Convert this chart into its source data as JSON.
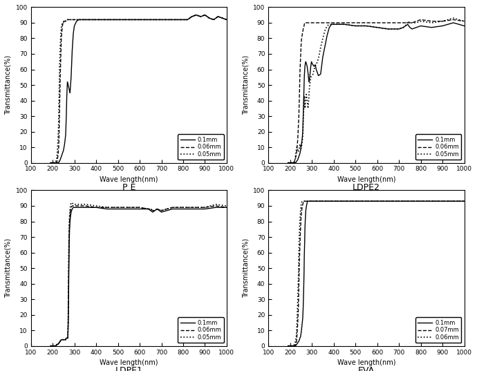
{
  "subplot_titles": [
    "P E",
    "LDPE2",
    "LDPE1",
    "EVA"
  ],
  "xlabel": "Wave length(nm)",
  "ylabel": "Transmittance(%)",
  "xlim": [
    100,
    1000
  ],
  "ylim": [
    0,
    100
  ],
  "xticks": [
    100,
    200,
    300,
    400,
    500,
    600,
    700,
    800,
    900,
    1000
  ],
  "yticks": [
    0,
    10,
    20,
    30,
    40,
    50,
    60,
    70,
    80,
    90,
    100
  ],
  "background_color": "#ffffff",
  "PE": {
    "legend": [
      "0.1mm",
      "0.06mm",
      "0.05mm"
    ],
    "thick_01": {
      "x": [
        190,
        200,
        205,
        210,
        215,
        217,
        220,
        222,
        225,
        228,
        230,
        232,
        235,
        240,
        245,
        250,
        255,
        260,
        263,
        265,
        268,
        270,
        273,
        275,
        278,
        280,
        285,
        290,
        295,
        300,
        310,
        320,
        330,
        340,
        350,
        400,
        500,
        600,
        700,
        800,
        820,
        840,
        860,
        880,
        900,
        920,
        940,
        960,
        980,
        1000
      ],
      "y": [
        0,
        0,
        0,
        0,
        0,
        0,
        0,
        0,
        0,
        0,
        1,
        1,
        2,
        4,
        6,
        8,
        12,
        18,
        30,
        42,
        52,
        51,
        49,
        48,
        46,
        45,
        55,
        72,
        83,
        88,
        91,
        92,
        92,
        92,
        92,
        92,
        92,
        92,
        92,
        92,
        92,
        94,
        95,
        94,
        95,
        93,
        92,
        94,
        93,
        92
      ]
    },
    "thick_006": {
      "x": [
        190,
        200,
        205,
        210,
        215,
        218,
        220,
        222,
        225,
        228,
        230,
        232,
        235,
        238,
        240,
        243,
        245,
        248,
        250,
        252,
        255,
        258,
        260,
        263,
        265,
        268,
        270,
        275,
        280,
        285,
        290,
        295,
        300,
        310,
        320,
        330,
        340,
        350,
        400,
        500,
        600,
        700,
        800,
        820,
        840,
        860,
        880,
        900,
        920,
        940,
        960,
        980,
        1000
      ],
      "y": [
        0,
        0,
        0,
        0,
        0,
        0,
        1,
        2,
        5,
        10,
        20,
        35,
        55,
        70,
        80,
        85,
        88,
        90,
        91,
        91,
        91,
        91,
        91,
        92,
        92,
        92,
        92,
        92,
        92,
        92,
        92,
        92,
        92,
        92,
        92,
        92,
        92,
        92,
        92,
        92,
        92,
        92,
        92,
        92,
        94,
        95,
        94,
        95,
        93,
        92,
        94,
        93,
        92
      ]
    },
    "thick_005": {
      "x": [
        190,
        200,
        205,
        210,
        213,
        215,
        218,
        220,
        222,
        225,
        228,
        230,
        232,
        235,
        238,
        240,
        243,
        245,
        248,
        250,
        252,
        255,
        258,
        260,
        263,
        265,
        268,
        270,
        275,
        280,
        285,
        290,
        295,
        300,
        310,
        320,
        330,
        340,
        350,
        400,
        500,
        600,
        700,
        800,
        820,
        840,
        860,
        880,
        900,
        920,
        940,
        960,
        980,
        1000
      ],
      "y": [
        0,
        0,
        0,
        0,
        0,
        1,
        2,
        4,
        8,
        15,
        28,
        45,
        62,
        75,
        83,
        87,
        89,
        90,
        90,
        90,
        91,
        91,
        91,
        91,
        92,
        92,
        92,
        92,
        92,
        92,
        92,
        92,
        92,
        92,
        92,
        92,
        92,
        92,
        92,
        92,
        92,
        92,
        92,
        92,
        92,
        94,
        95,
        94,
        95,
        93,
        92,
        94,
        93,
        92
      ]
    }
  },
  "LDPE2": {
    "legend": [
      "0.1mm",
      "0.06mm",
      "0.05mm"
    ],
    "thick_01": {
      "x": [
        190,
        200,
        205,
        210,
        215,
        220,
        225,
        230,
        235,
        240,
        245,
        248,
        250,
        252,
        255,
        258,
        260,
        262,
        264,
        265,
        267,
        268,
        270,
        272,
        274,
        276,
        278,
        280,
        282,
        284,
        285,
        287,
        290,
        292,
        295,
        298,
        300,
        305,
        310,
        315,
        320,
        325,
        330,
        340,
        350,
        360,
        370,
        380,
        390,
        400,
        450,
        500,
        550,
        600,
        650,
        700,
        720,
        730,
        740,
        750,
        760,
        780,
        800,
        850,
        900,
        950,
        1000
      ],
      "y": [
        0,
        0,
        0,
        0,
        0,
        0,
        0,
        1,
        2,
        4,
        6,
        8,
        10,
        12,
        15,
        20,
        30,
        40,
        50,
        55,
        60,
        62,
        64,
        65,
        64,
        63,
        62,
        60,
        58,
        55,
        54,
        52,
        55,
        58,
        62,
        65,
        64,
        63,
        62,
        63,
        60,
        58,
        56,
        57,
        68,
        75,
        82,
        87,
        89,
        89,
        89,
        88,
        88,
        87,
        86,
        86,
        87,
        88,
        89,
        87,
        86,
        87,
        88,
        87,
        88,
        90,
        88
      ]
    },
    "thick_006": {
      "x": [
        190,
        200,
        205,
        210,
        215,
        220,
        225,
        230,
        235,
        240,
        243,
        245,
        248,
        250,
        252,
        255,
        258,
        260,
        262,
        264,
        265,
        267,
        270,
        272,
        275,
        278,
        280,
        282,
        285,
        287,
        290,
        295,
        300,
        305,
        310,
        315,
        320,
        330,
        340,
        350,
        360,
        370,
        380,
        390,
        400,
        450,
        500,
        550,
        600,
        650,
        700,
        720,
        730,
        740,
        750,
        760,
        780,
        800,
        850,
        900,
        950,
        1000
      ],
      "y": [
        0,
        0,
        0,
        0,
        0,
        1,
        3,
        7,
        15,
        30,
        45,
        58,
        68,
        75,
        79,
        82,
        84,
        86,
        87,
        88,
        89,
        90,
        90,
        90,
        90,
        90,
        90,
        90,
        90,
        90,
        90,
        90,
        90,
        90,
        90,
        90,
        90,
        90,
        90,
        90,
        90,
        90,
        90,
        90,
        90,
        90,
        90,
        90,
        90,
        90,
        90,
        90,
        90,
        90,
        90,
        90,
        91,
        92,
        91,
        91,
        92,
        91
      ]
    },
    "thick_005": {
      "x": [
        190,
        200,
        205,
        210,
        215,
        218,
        220,
        222,
        225,
        228,
        230,
        232,
        235,
        238,
        240,
        243,
        245,
        248,
        250,
        252,
        255,
        258,
        260,
        262,
        264,
        265,
        267,
        268,
        270,
        272,
        274,
        276,
        278,
        280,
        282,
        285,
        287,
        290,
        295,
        300,
        305,
        310,
        315,
        320,
        330,
        340,
        350,
        360,
        370,
        380,
        390,
        400,
        450,
        500,
        550,
        600,
        650,
        700,
        720,
        730,
        740,
        750,
        760,
        780,
        800,
        850,
        900,
        950,
        1000
      ],
      "y": [
        0,
        0,
        0,
        0,
        0,
        0,
        1,
        2,
        5,
        8,
        10,
        10,
        8,
        7,
        8,
        10,
        12,
        10,
        9,
        10,
        13,
        17,
        25,
        33,
        40,
        43,
        38,
        35,
        38,
        42,
        44,
        42,
        40,
        38,
        35,
        40,
        45,
        50,
        55,
        56,
        57,
        60,
        62,
        63,
        67,
        74,
        80,
        85,
        88,
        89,
        89,
        89,
        89,
        88,
        88,
        87,
        86,
        86,
        87,
        88,
        91,
        90,
        90,
        90,
        91,
        90,
        91,
        93,
        91
      ]
    }
  },
  "LDPE1": {
    "legend": [
      "0.1mm",
      "0.06mm",
      "0.05mm"
    ],
    "thick_01": {
      "x": [
        190,
        200,
        205,
        210,
        215,
        220,
        225,
        230,
        235,
        240,
        245,
        248,
        250,
        252,
        255,
        258,
        260,
        262,
        264,
        265,
        267,
        268,
        270,
        272,
        274,
        276,
        278,
        280,
        282,
        285,
        290,
        295,
        300,
        310,
        320,
        330,
        340,
        350,
        400,
        450,
        500,
        550,
        600,
        640,
        650,
        660,
        670,
        680,
        700,
        750,
        800,
        850,
        900,
        950,
        1000
      ],
      "y": [
        0,
        0,
        0,
        0,
        0,
        1,
        1,
        2,
        3,
        4,
        4,
        4,
        4,
        4,
        4,
        4,
        4,
        5,
        5,
        5,
        5,
        5,
        5,
        15,
        40,
        65,
        75,
        80,
        83,
        86,
        88,
        89,
        89,
        89,
        89,
        89,
        89,
        89,
        89,
        88,
        88,
        88,
        88,
        88,
        87,
        86,
        87,
        88,
        86,
        88,
        88,
        88,
        88,
        89,
        89
      ]
    },
    "thick_006": {
      "x": [
        190,
        200,
        205,
        210,
        215,
        220,
        225,
        230,
        235,
        240,
        245,
        248,
        250,
        252,
        255,
        258,
        260,
        262,
        264,
        265,
        267,
        268,
        270,
        272,
        274,
        276,
        278,
        280,
        282,
        285,
        290,
        295,
        300,
        310,
        320,
        330,
        340,
        350,
        400,
        450,
        500,
        550,
        600,
        640,
        650,
        660,
        670,
        680,
        700,
        750,
        800,
        850,
        900,
        950,
        1000
      ],
      "y": [
        0,
        0,
        0,
        0,
        0,
        1,
        1,
        2,
        3,
        4,
        4,
        4,
        4,
        4,
        4,
        4,
        4,
        5,
        5,
        5,
        5,
        5,
        5,
        20,
        50,
        72,
        80,
        84,
        87,
        89,
        90,
        90,
        90,
        90,
        90,
        90,
        90,
        90,
        89,
        89,
        89,
        89,
        89,
        88,
        88,
        87,
        87,
        88,
        87,
        89,
        89,
        89,
        89,
        90,
        89
      ]
    },
    "thick_005": {
      "x": [
        190,
        200,
        205,
        210,
        215,
        220,
        225,
        230,
        235,
        240,
        245,
        248,
        250,
        252,
        255,
        258,
        260,
        262,
        264,
        265,
        267,
        268,
        270,
        272,
        274,
        276,
        278,
        280,
        282,
        285,
        290,
        295,
        300,
        310,
        320,
        330,
        340,
        350,
        400,
        450,
        500,
        550,
        600,
        640,
        650,
        660,
        670,
        680,
        700,
        750,
        800,
        850,
        900,
        950,
        1000
      ],
      "y": [
        0,
        0,
        0,
        0,
        0,
        1,
        1,
        2,
        3,
        4,
        4,
        4,
        4,
        4,
        4,
        4,
        4,
        5,
        5,
        5,
        5,
        5,
        5,
        25,
        58,
        78,
        84,
        88,
        90,
        92,
        92,
        91,
        91,
        91,
        91,
        91,
        91,
        91,
        90,
        89,
        89,
        89,
        89,
        88,
        88,
        87,
        87,
        88,
        87,
        89,
        89,
        89,
        89,
        91,
        90
      ]
    }
  },
  "EVA": {
    "legend": [
      "0.1mm",
      "0.07mm",
      "0.06mm"
    ],
    "thick_01": {
      "x": [
        190,
        200,
        205,
        210,
        215,
        220,
        225,
        230,
        235,
        240,
        245,
        248,
        250,
        252,
        255,
        258,
        260,
        262,
        264,
        265,
        267,
        268,
        270,
        272,
        275,
        278,
        280,
        285,
        290,
        295,
        300,
        310,
        320,
        330,
        340,
        350,
        400,
        500,
        600,
        700,
        800,
        850,
        900,
        950,
        1000
      ],
      "y": [
        0,
        0,
        0,
        0,
        0,
        0,
        0,
        1,
        2,
        3,
        5,
        6,
        8,
        10,
        14,
        18,
        25,
        35,
        48,
        58,
        68,
        76,
        82,
        87,
        90,
        92,
        93,
        93,
        93,
        93,
        93,
        93,
        93,
        93,
        93,
        93,
        93,
        93,
        93,
        93,
        93,
        93,
        93,
        93,
        93
      ]
    },
    "thick_007": {
      "x": [
        190,
        200,
        205,
        210,
        215,
        220,
        225,
        228,
        230,
        232,
        235,
        238,
        240,
        242,
        245,
        248,
        250,
        252,
        255,
        258,
        260,
        262,
        264,
        265,
        267,
        268,
        270,
        272,
        275,
        278,
        280,
        285,
        290,
        295,
        300,
        310,
        320,
        330,
        340,
        350,
        400,
        500,
        600,
        700,
        800,
        850,
        900,
        950,
        1000
      ],
      "y": [
        0,
        0,
        0,
        0,
        0,
        0,
        1,
        2,
        4,
        8,
        15,
        25,
        38,
        52,
        65,
        76,
        82,
        86,
        89,
        91,
        92,
        93,
        93,
        93,
        93,
        93,
        93,
        93,
        93,
        93,
        93,
        93,
        93,
        93,
        93,
        93,
        93,
        93,
        93,
        93,
        93,
        93,
        93,
        93,
        93,
        93,
        93,
        93,
        93
      ]
    },
    "thick_006": {
      "x": [
        190,
        200,
        205,
        210,
        215,
        220,
        225,
        228,
        230,
        232,
        235,
        238,
        240,
        242,
        245,
        248,
        250,
        252,
        255,
        258,
        260,
        262,
        264,
        265,
        267,
        268,
        270,
        272,
        275,
        278,
        280,
        285,
        290,
        295,
        300,
        310,
        320,
        330,
        340,
        350,
        400,
        500,
        600,
        700,
        800,
        850,
        900,
        950,
        1000
      ],
      "y": [
        0,
        0,
        0,
        0,
        0,
        1,
        3,
        6,
        10,
        18,
        30,
        45,
        60,
        72,
        81,
        87,
        90,
        92,
        93,
        93,
        93,
        93,
        93,
        93,
        93,
        93,
        93,
        93,
        93,
        93,
        93,
        93,
        93,
        93,
        93,
        93,
        93,
        93,
        93,
        93,
        93,
        93,
        93,
        93,
        93,
        93,
        93,
        93,
        93
      ]
    }
  }
}
